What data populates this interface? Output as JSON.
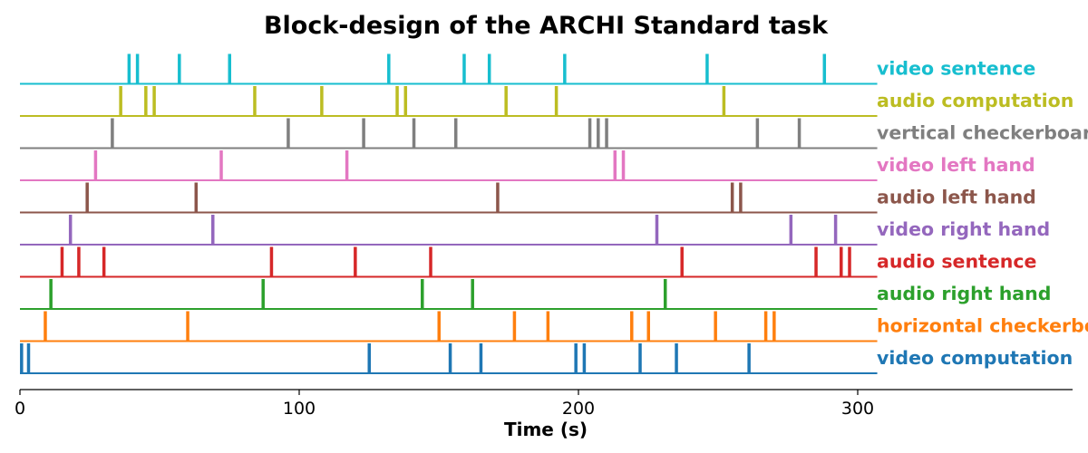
{
  "chart_data": {
    "type": "event-raster",
    "title": "Block-design of the ARCHI Standard task",
    "xlabel": "Time (s)",
    "xlim": [
      0,
      375
    ],
    "xticks": [
      0,
      100,
      200,
      300
    ],
    "xtick_labels": [
      "0",
      "100",
      "200",
      "300"
    ],
    "baseline_end": 307,
    "grid": false,
    "series": [
      {
        "name": "video computation",
        "color": "#1f77b4",
        "onsets": [
          0.5,
          3,
          125,
          154,
          165,
          199,
          202,
          222,
          235,
          261
        ]
      },
      {
        "name": "horizontal checkerboard",
        "color": "#ff7f0e",
        "onsets": [
          9,
          60,
          150,
          177,
          189,
          219,
          225,
          249,
          267,
          270
        ]
      },
      {
        "name": "audio right hand",
        "color": "#2ca02c",
        "onsets": [
          11,
          87,
          144,
          162,
          231
        ]
      },
      {
        "name": "audio sentence",
        "color": "#d62728",
        "onsets": [
          15,
          21,
          30,
          90,
          120,
          147,
          237,
          285,
          294,
          297
        ]
      },
      {
        "name": "video right hand",
        "color": "#9467bd",
        "onsets": [
          18,
          69,
          228,
          276,
          292
        ]
      },
      {
        "name": "audio left hand",
        "color": "#8c564b",
        "onsets": [
          24,
          63,
          171,
          255,
          258
        ]
      },
      {
        "name": "video left hand",
        "color": "#e377c2",
        "onsets": [
          27,
          72,
          117,
          213,
          216
        ]
      },
      {
        "name": "vertical checkerboard",
        "color": "#7f7f7f",
        "onsets": [
          33,
          96,
          123,
          141,
          156,
          204,
          207,
          210,
          264,
          279
        ]
      },
      {
        "name": "audio computation",
        "color": "#bcbd22",
        "onsets": [
          36,
          45,
          48,
          84,
          108,
          135,
          138,
          174,
          192,
          252
        ]
      },
      {
        "name": "video sentence",
        "color": "#17becf",
        "onsets": [
          39,
          42,
          57,
          75,
          132,
          159,
          168,
          195,
          246,
          288
        ]
      }
    ]
  }
}
